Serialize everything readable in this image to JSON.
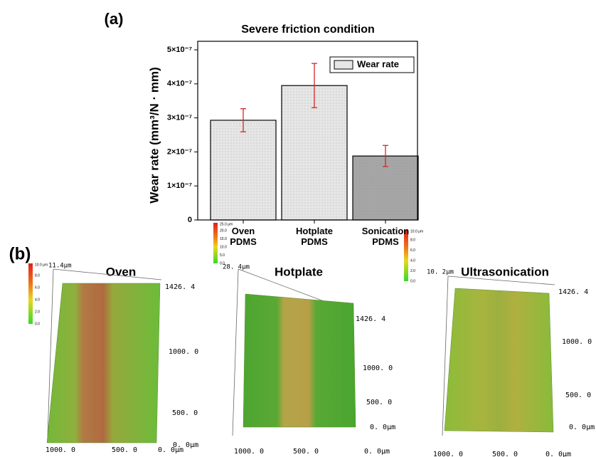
{
  "chart_data": {
    "type": "bar",
    "panel_label": "(a)",
    "title": "Severe friction condition",
    "y_label": "Wear rate (mm³/N · mm)",
    "categories": [
      "Oven\nPDMS",
      "Hotplate\nPDMS",
      "Sonication\nPDMS"
    ],
    "series": [
      {
        "name": "Wear rate",
        "color": "#e6e6e6",
        "bar_colors": [
          "#e6e6e6",
          "#e6e6e6",
          "#a6a6a6"
        ],
        "values": [
          2.93e-07,
          3.95e-07,
          1.88e-07
        ],
        "errors": [
          3.4e-08,
          6.5e-08,
          3.1e-08
        ],
        "error_color": "#d62728"
      }
    ],
    "ylim": [
      0,
      5e-07
    ],
    "yticks": [
      0,
      {
        "value": 1e-07,
        "label": "1×10⁻⁷"
      },
      {
        "value": 2e-07,
        "label": "2×10⁻⁷"
      },
      {
        "value": 3e-07,
        "label": "3×10⁻⁷"
      },
      {
        "value": 4e-07,
        "label": "4×10⁻⁷"
      },
      {
        "value": 5e-07,
        "label": "5×10⁻⁷"
      }
    ],
    "legend": "top-right"
  },
  "panel_b": {
    "label": "(b)",
    "images": [
      {
        "title": "Oven",
        "z_max": "11.4μm",
        "scale_max": "10.0 μm",
        "scale_ticks": [
          "8.0",
          "6.0",
          "4.0",
          "2.0",
          "0.0"
        ],
        "y_ticks": [
          "1426. 4",
          "1000. 0",
          "500. 0",
          "0. 0μm"
        ],
        "x_ticks": [
          "1000. 0",
          "500. 0",
          "0. 0μm"
        ]
      },
      {
        "title": "Hotplate",
        "z_max": "28. 4μm",
        "scale_max": "25.0 μm",
        "scale_ticks": [
          "20.0",
          "15.0",
          "10.0",
          "5.0",
          "0.0"
        ],
        "y_ticks": [
          "1426. 4",
          "1000. 0",
          "500. 0",
          "0. 0μm"
        ],
        "x_ticks": [
          "1000. 0",
          "500. 0",
          "0. 0μm"
        ]
      },
      {
        "title": "Ultrasonication",
        "z_max": "10. 2μm",
        "scale_max": "10.0 μm",
        "scale_ticks": [
          "8.0",
          "6.0",
          "4.0",
          "2.0",
          "0.0"
        ],
        "y_ticks": [
          "1426. 4",
          "1000. 0",
          "500. 0",
          "0. 0μm"
        ],
        "x_ticks": [
          "1000. 0",
          "500. 0",
          "0. 0μm"
        ]
      }
    ]
  }
}
